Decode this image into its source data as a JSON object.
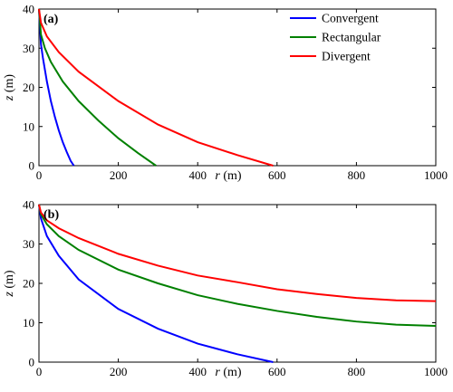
{
  "chart_data": [
    {
      "type": "line",
      "panel_label": "(a)",
      "xlabel_var": "r",
      "xlabel_unit": "(m)",
      "ylabel_var": "z",
      "ylabel_unit": "(m)",
      "xlim": [
        0,
        1000
      ],
      "ylim": [
        0,
        40
      ],
      "xticks": [
        0,
        200,
        400,
        600,
        800,
        1000
      ],
      "yticks": [
        0,
        10,
        20,
        30,
        40
      ],
      "grid": false,
      "legend": "top-right",
      "series": [
        {
          "name": "Convergent",
          "color": "#0000ff",
          "x": [
            0,
            5,
            10,
            20,
            30,
            40,
            50,
            60,
            70,
            80,
            88
          ],
          "y": [
            40,
            31,
            27.5,
            21.5,
            16.5,
            12.5,
            9,
            6,
            3.5,
            1.2,
            0
          ]
        },
        {
          "name": "Rectangular",
          "color": "#008000",
          "x": [
            0,
            5,
            15,
            30,
            60,
            100,
            150,
            200,
            250,
            295
          ],
          "y": [
            40,
            33.5,
            30,
            26.5,
            21.5,
            16.5,
            11.5,
            7,
            3.2,
            0
          ]
        },
        {
          "name": "Divergent",
          "color": "#ff0000",
          "x": [
            0,
            5,
            20,
            50,
            100,
            200,
            300,
            400,
            500,
            590
          ],
          "y": [
            40,
            36.5,
            33,
            29,
            24,
            16.5,
            10.5,
            6,
            2.7,
            0
          ]
        }
      ]
    },
    {
      "type": "line",
      "panel_label": "(b)",
      "xlabel_var": "r",
      "xlabel_unit": "(m)",
      "ylabel_var": "z",
      "ylabel_unit": "(m)",
      "xlim": [
        0,
        1000
      ],
      "ylim": [
        0,
        40
      ],
      "xticks": [
        0,
        200,
        400,
        600,
        800,
        1000
      ],
      "yticks": [
        0,
        10,
        20,
        30,
        40
      ],
      "grid": false,
      "series": [
        {
          "name": "Convergent",
          "color": "#0000ff",
          "x": [
            0,
            5,
            20,
            50,
            100,
            200,
            300,
            400,
            500,
            590
          ],
          "y": [
            40,
            36.5,
            32,
            27,
            21,
            13.5,
            8.5,
            4.7,
            2,
            0
          ]
        },
        {
          "name": "Rectangular",
          "color": "#008000",
          "x": [
            0,
            5,
            20,
            50,
            100,
            200,
            300,
            400,
            500,
            600,
            700,
            800,
            900,
            1000
          ],
          "y": [
            40,
            37.5,
            35,
            32,
            28.5,
            23.5,
            20,
            17,
            14.8,
            13,
            11.5,
            10.3,
            9.5,
            9.2
          ]
        },
        {
          "name": "Divergent",
          "color": "#ff0000",
          "x": [
            0,
            5,
            20,
            50,
            100,
            200,
            300,
            400,
            500,
            600,
            700,
            800,
            900,
            1000
          ],
          "y": [
            40,
            38,
            36,
            34,
            31.5,
            27.5,
            24.5,
            22,
            20.3,
            18.5,
            17.3,
            16.3,
            15.7,
            15.5
          ]
        }
      ]
    }
  ]
}
